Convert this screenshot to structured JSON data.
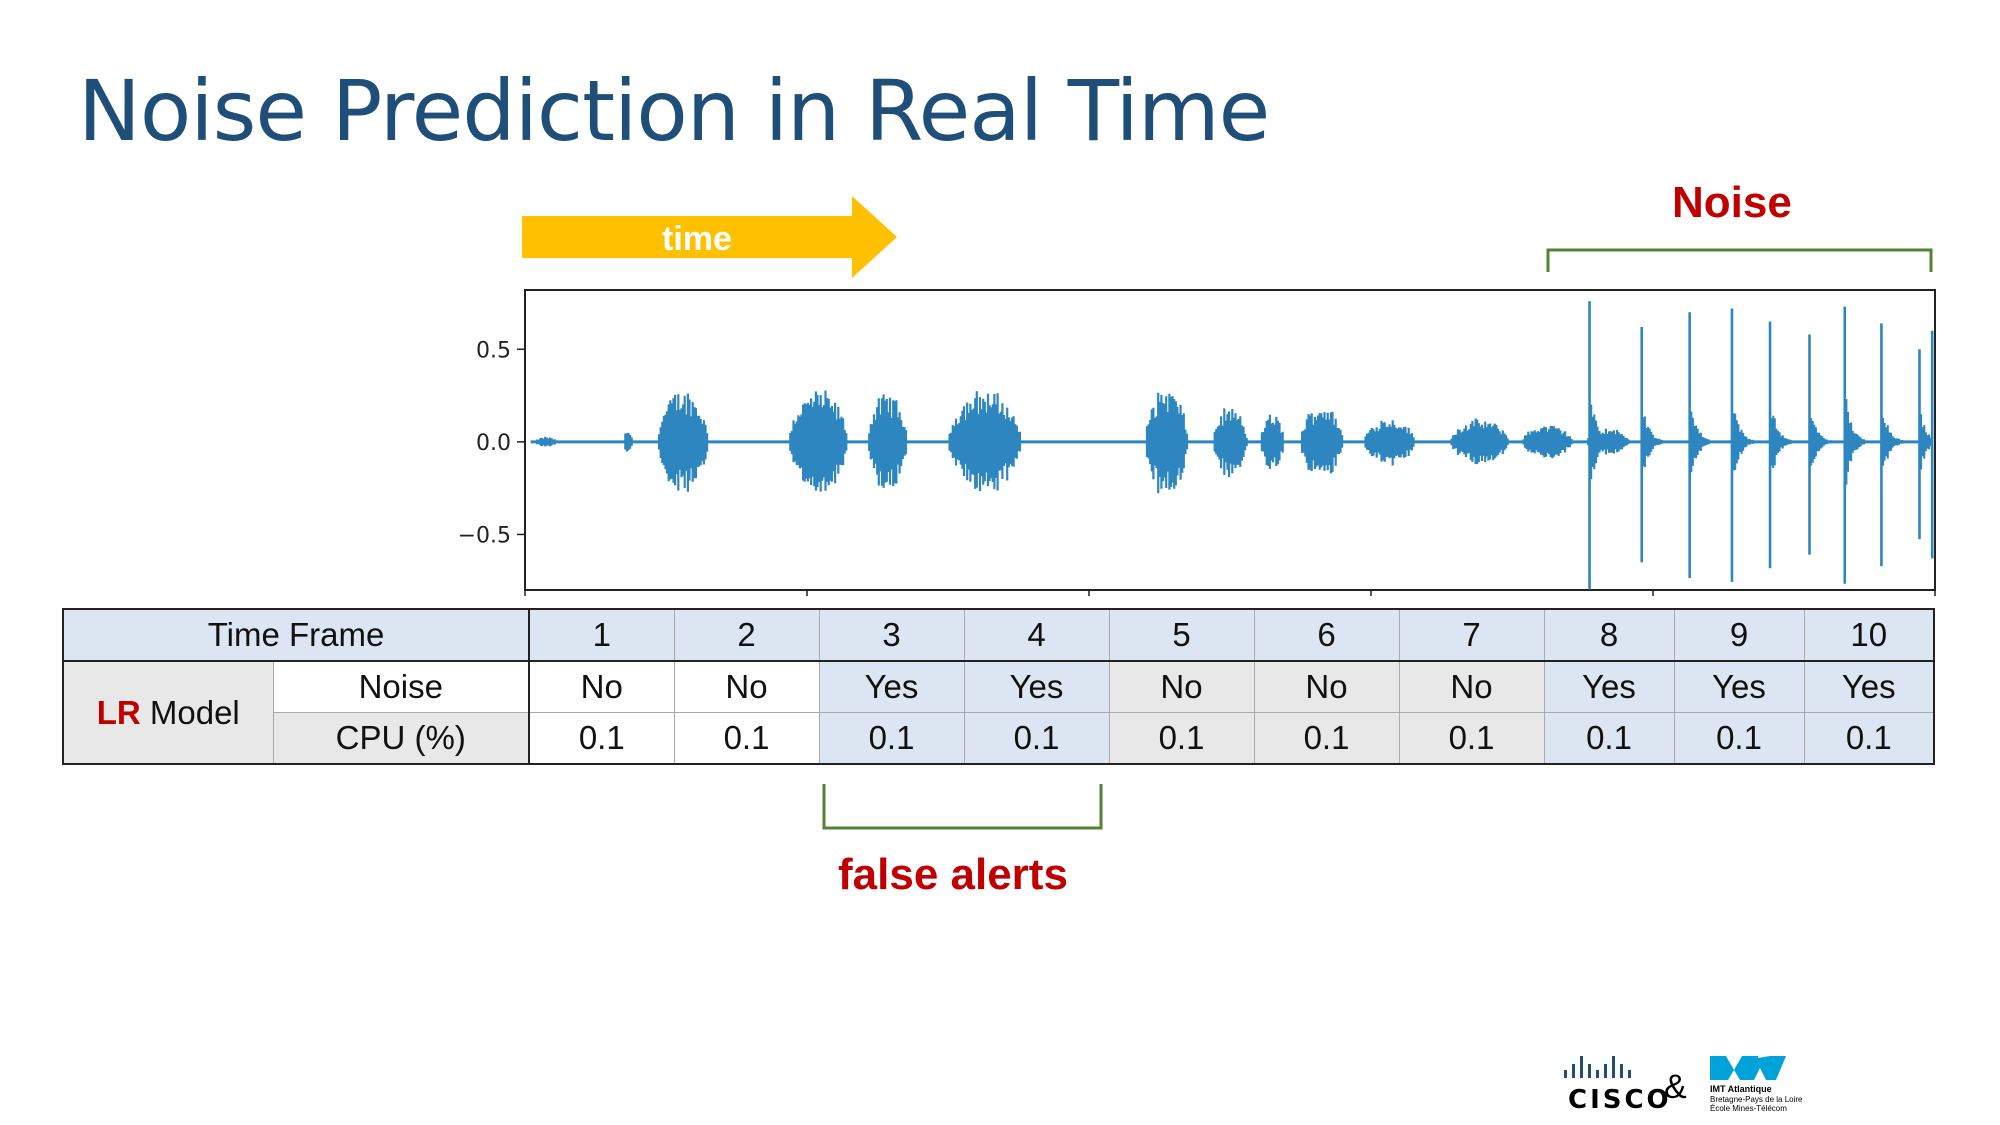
{
  "slide": {
    "title": "Noise Prediction in Real Time",
    "time_label": "time",
    "noise_label": "Noise",
    "false_alerts_label": "false alerts"
  },
  "colors": {
    "title": "#1f4e79",
    "arrow": "#ffc000",
    "alert_text": "#c00000",
    "bracket": "#548235",
    "waveform": "#2e86c1",
    "cell_blue": "#dce6f2",
    "cell_gray": "#e8e8e8"
  },
  "chart_data": {
    "type": "line",
    "title": "",
    "xlabel": "",
    "ylabel": "",
    "yticks": [
      "0.5",
      "0.0",
      "−0.5"
    ],
    "ytick_values": [
      0.5,
      0.0,
      -0.5
    ],
    "ylim": [
      -0.8,
      0.82
    ],
    "xlim": [
      0,
      100
    ],
    "grid": false,
    "bursts": [
      {
        "center": 1.5,
        "width": 1.5,
        "amp": 0.03
      },
      {
        "center": 7.3,
        "width": 0.6,
        "amp": 0.07
      },
      {
        "center": 11.2,
        "width": 3.6,
        "amp": 0.3
      },
      {
        "center": 20.8,
        "width": 4.2,
        "amp": 0.3
      },
      {
        "center": 25.7,
        "width": 2.8,
        "amp": 0.28
      },
      {
        "center": 32.6,
        "width": 5.2,
        "amp": 0.3
      },
      {
        "center": 45.5,
        "width": 3.0,
        "amp": 0.32
      },
      {
        "center": 50.0,
        "width": 2.4,
        "amp": 0.2
      },
      {
        "center": 53.0,
        "width": 1.7,
        "amp": 0.16
      },
      {
        "center": 56.5,
        "width": 3.0,
        "amp": 0.22
      },
      {
        "center": 61.3,
        "width": 3.6,
        "amp": 0.14
      },
      {
        "center": 67.7,
        "width": 4.2,
        "amp": 0.13
      },
      {
        "center": 72.5,
        "width": 3.6,
        "amp": 0.1
      },
      {
        "center": 76.8,
        "width": 3.0,
        "amp": 0.08
      }
    ],
    "spikes": [
      {
        "x": 75.5,
        "amp": 0.76
      },
      {
        "x": 79.2,
        "amp": 0.62
      },
      {
        "x": 82.6,
        "amp": 0.7
      },
      {
        "x": 85.6,
        "amp": 0.72
      },
      {
        "x": 88.3,
        "amp": 0.65
      },
      {
        "x": 91.1,
        "amp": 0.58
      },
      {
        "x": 93.6,
        "amp": 0.73
      },
      {
        "x": 96.2,
        "amp": 0.64
      },
      {
        "x": 98.9,
        "amp": 0.5
      },
      {
        "x": 99.8,
        "amp": 0.6
      }
    ]
  },
  "table": {
    "header_label": "Time Frame",
    "frames": [
      "1",
      "2",
      "3",
      "4",
      "5",
      "6",
      "7",
      "8",
      "9",
      "10"
    ],
    "model_prefix": "LR",
    "model_suffix": " Model",
    "noise_label": "Noise",
    "noise": [
      "No",
      "No",
      "Yes",
      "Yes",
      "No",
      "No",
      "No",
      "Yes",
      "Yes",
      "Yes"
    ],
    "cpu_label": "CPU (%)",
    "cpu": [
      "0.1",
      "0.1",
      "0.1",
      "0.1",
      "0.1",
      "0.1",
      "0.1",
      "0.1",
      "0.1",
      "0.1"
    ]
  },
  "footer": {
    "cisco": "CISCO",
    "ampersand": "&",
    "imt_name": "IMT Atlantique",
    "imt_line2": "Bretagne-Pays de la Loire",
    "imt_line3": "École Mines-Télécom"
  }
}
